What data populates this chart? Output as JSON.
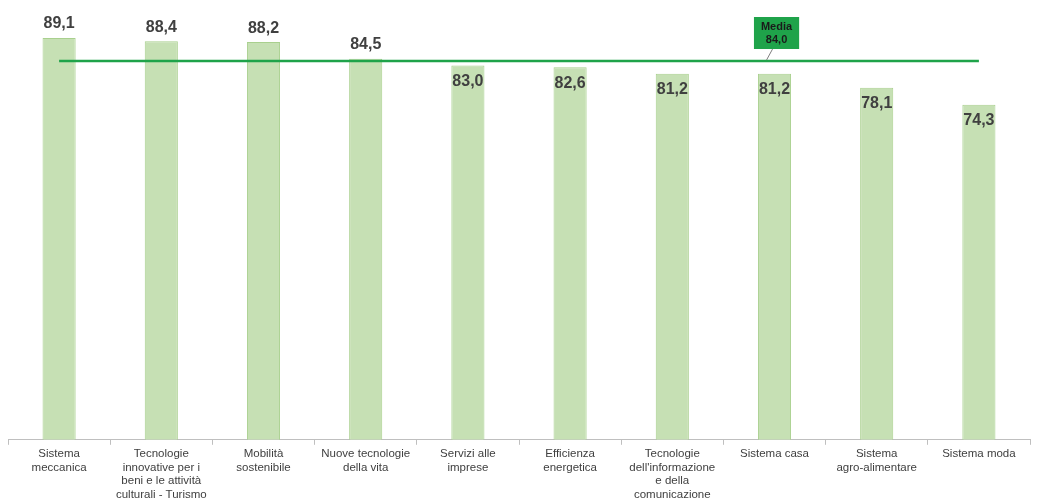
{
  "chart_data": {
    "type": "bar",
    "categories": [
      "Sistema meccanica",
      "Tecnologie innovative per i beni e le attività culturali - Turismo",
      "Mobilità sostenibile",
      "Nuove tecnologie della vita",
      "Servizi alle imprese",
      "Efficienza energetica",
      "Tecnologie dell'informazione e della comunicazione",
      "Sistema casa",
      "Sistema agro-alimentare",
      "Sistema moda"
    ],
    "values": [
      89.1,
      88.4,
      88.2,
      84.5,
      83.0,
      82.6,
      81.2,
      81.2,
      78.1,
      74.3
    ],
    "value_labels": [
      "89,1",
      "88,4",
      "88,2",
      "84,5",
      "83,0",
      "82,6",
      "81,2",
      "81,2",
      "78,1",
      "74,3"
    ],
    "color": "#c6e0b4",
    "tick_labels": "x",
    "grid": false,
    "legend": false,
    "ref_lines": [
      {
        "axis": "y",
        "value": 84.0,
        "label": "Media 84,0",
        "color": "#1fa34a"
      }
    ]
  }
}
